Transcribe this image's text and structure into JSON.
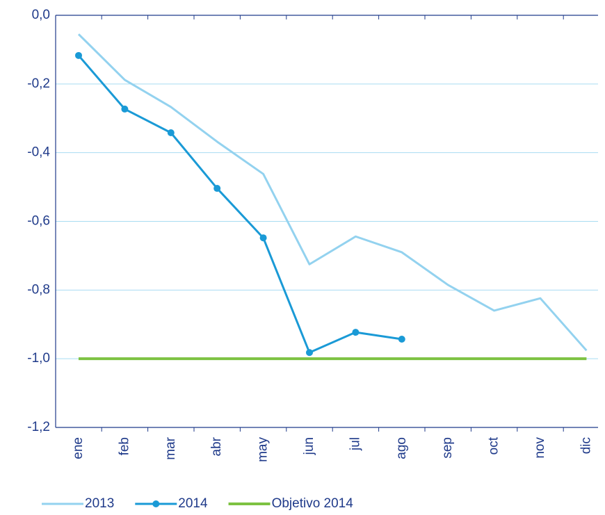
{
  "chart_data": {
    "type": "line",
    "categories": [
      "ene",
      "feb",
      "mar",
      "abr",
      "may",
      "jun",
      "jul",
      "ago",
      "sep",
      "oct",
      "nov",
      "dic"
    ],
    "series": [
      {
        "name": "2013",
        "color": "#93d2ef",
        "values": [
          -0.055,
          -0.188,
          -0.267,
          -0.368,
          -0.462,
          -0.725,
          -0.644,
          -0.69,
          -0.785,
          -0.86,
          -0.824,
          -0.976
        ]
      },
      {
        "name": "2014",
        "color": "#1a9ad6",
        "marker": true,
        "values": [
          -0.117,
          -0.273,
          -0.342,
          -0.504,
          -0.648,
          -0.982,
          -0.923,
          -0.943,
          null,
          null,
          null,
          null
        ]
      },
      {
        "name": "Objetivo 2014",
        "color": "#7dc242",
        "values": [
          -1.0,
          -1.0,
          -1.0,
          -1.0,
          -1.0,
          -1.0,
          -1.0,
          -1.0,
          -1.0,
          -1.0,
          -1.0,
          -1.0
        ]
      }
    ],
    "ylim": [
      -1.2,
      0
    ],
    "yticks": [
      {
        "value": 0,
        "label": "0,0"
      },
      {
        "value": -0.2,
        "label": "-0,2"
      },
      {
        "value": -0.4,
        "label": "-0,4"
      },
      {
        "value": -0.6,
        "label": "-0,6"
      },
      {
        "value": -0.8,
        "label": "-0,8"
      },
      {
        "value": -1.0,
        "label": "-1,0"
      },
      {
        "value": -1.2,
        "label": "-1,2"
      }
    ],
    "grid": true,
    "legend": "bottom"
  }
}
